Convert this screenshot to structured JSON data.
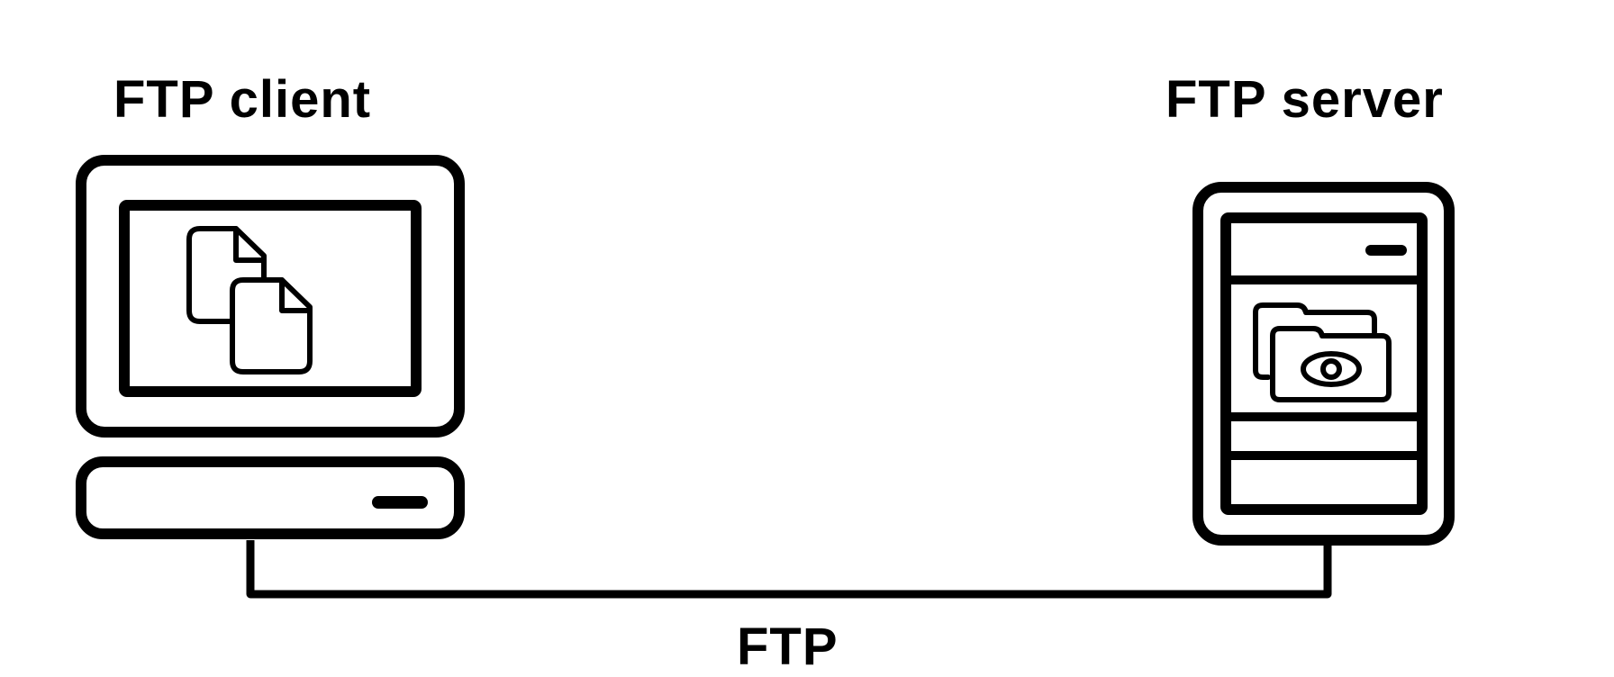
{
  "labels": {
    "client": "FTP client",
    "server": "FTP server",
    "connection": "FTP"
  },
  "icons": {
    "client": [
      "computer-monitor-icon",
      "documents-icon",
      "desktop-base-icon"
    ],
    "server": [
      "server-tower-icon",
      "folder-eye-icon"
    ]
  },
  "colors": {
    "stroke": "#000000",
    "background": "#ffffff"
  }
}
